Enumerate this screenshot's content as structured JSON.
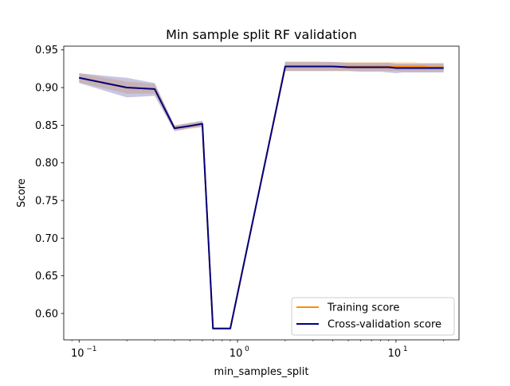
{
  "chart_data": {
    "type": "line",
    "title": "Min sample split RF validation",
    "xlabel": "min_samples_split",
    "ylabel": "Score",
    "xscale": "log",
    "xlim": [
      0.08,
      25
    ],
    "ylim": [
      0.565,
      0.955
    ],
    "grid": false,
    "legend_placement": "lower-right",
    "x": [
      0.1,
      0.2,
      0.3,
      0.4,
      0.5,
      0.6,
      0.7,
      0.8,
      0.9,
      2,
      3,
      4,
      5,
      6,
      7,
      8,
      9,
      10,
      11,
      12,
      13,
      14,
      15,
      16,
      17,
      18,
      19,
      20
    ],
    "series": [
      {
        "name": "Training score",
        "color": "#ff8c00",
        "values": [
          0.913,
          0.9,
          0.898,
          0.846,
          0.849,
          0.851,
          0.58,
          0.58,
          0.58,
          0.928,
          0.928,
          0.928,
          0.928,
          0.928,
          0.928,
          0.928,
          0.928,
          0.928,
          0.928,
          0.928,
          0.928,
          0.928,
          0.928,
          0.927,
          0.927,
          0.927,
          0.927,
          0.927
        ],
        "band_low": [
          0.907,
          0.892,
          0.892,
          0.843,
          0.845,
          0.847,
          0.579,
          0.579,
          0.579,
          0.922,
          0.922,
          0.922,
          0.922,
          0.922,
          0.922,
          0.922,
          0.922,
          0.922,
          0.921,
          0.921,
          0.921,
          0.921,
          0.921,
          0.921,
          0.921,
          0.921,
          0.921,
          0.921
        ],
        "band_high": [
          0.919,
          0.908,
          0.905,
          0.849,
          0.853,
          0.855,
          0.581,
          0.581,
          0.581,
          0.935,
          0.935,
          0.934,
          0.934,
          0.934,
          0.934,
          0.934,
          0.934,
          0.934,
          0.934,
          0.934,
          0.934,
          0.933,
          0.933,
          0.933,
          0.933,
          0.933,
          0.933,
          0.933
        ]
      },
      {
        "name": "Cross-validation score",
        "color": "#000080",
        "values": [
          0.913,
          0.9,
          0.898,
          0.846,
          0.849,
          0.852,
          0.58,
          0.58,
          0.58,
          0.928,
          0.928,
          0.928,
          0.927,
          0.927,
          0.927,
          0.927,
          0.927,
          0.926,
          0.926,
          0.926,
          0.926,
          0.926,
          0.926,
          0.926,
          0.926,
          0.926,
          0.926,
          0.926
        ],
        "band_low": [
          0.906,
          0.887,
          0.889,
          0.842,
          0.846,
          0.848,
          0.579,
          0.579,
          0.579,
          0.922,
          0.922,
          0.922,
          0.922,
          0.921,
          0.921,
          0.921,
          0.92,
          0.919,
          0.92,
          0.92,
          0.92,
          0.92,
          0.92,
          0.92,
          0.92,
          0.92,
          0.92,
          0.92
        ],
        "band_high": [
          0.919,
          0.913,
          0.906,
          0.85,
          0.853,
          0.856,
          0.581,
          0.581,
          0.581,
          0.934,
          0.934,
          0.934,
          0.933,
          0.933,
          0.933,
          0.933,
          0.933,
          0.932,
          0.932,
          0.932,
          0.932,
          0.932,
          0.932,
          0.932,
          0.932,
          0.932,
          0.932,
          0.932
        ]
      }
    ],
    "y_ticks": [
      0.6,
      0.65,
      0.7,
      0.75,
      0.8,
      0.85,
      0.9,
      0.95
    ],
    "y_tick_labels": [
      "0.60",
      "0.65",
      "0.70",
      "0.75",
      "0.80",
      "0.85",
      "0.90",
      "0.95"
    ],
    "x_ticks": [
      0.1,
      1,
      10
    ],
    "x_tick_base": "10",
    "x_tick_exponents": [
      "−1",
      "0",
      "1"
    ]
  }
}
